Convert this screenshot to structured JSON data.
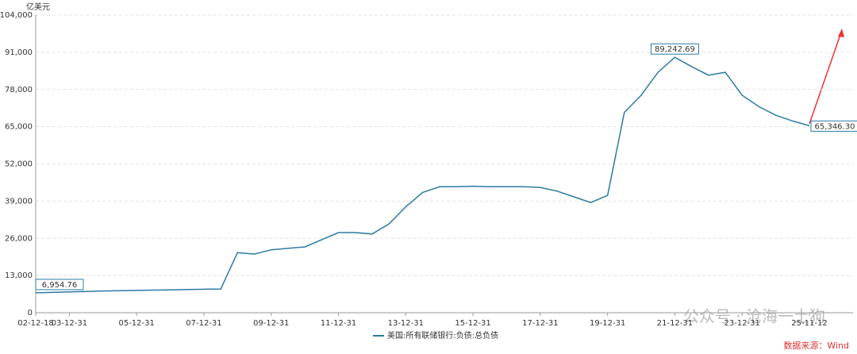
{
  "chart_data": {
    "type": "line",
    "y_unit": "亿美元",
    "categories": [
      "02-12-18",
      null,
      "03-12-31",
      null,
      null,
      null,
      "05-12-31",
      null,
      null,
      null,
      "07-12-31",
      null,
      null,
      null,
      "09-12-31",
      null,
      null,
      null,
      "11-12-31",
      null,
      null,
      null,
      "13-12-31",
      null,
      null,
      null,
      "15-12-31",
      null,
      null,
      null,
      "17-12-31",
      null,
      null,
      null,
      "19-12-31",
      null,
      null,
      null,
      "21-12-31",
      null,
      null,
      null,
      "23-12-31",
      null,
      null,
      null,
      "25-11-12"
    ],
    "series": [
      {
        "name": "美国:所有联储银行:负债:总负债",
        "color": "#2b7ba3",
        "values": [
          6954.76,
          7100,
          7300,
          7400,
          7600,
          7700,
          7800,
          7900,
          8000,
          8100,
          8200,
          8300,
          21000,
          20500,
          22000,
          22500,
          23000,
          25500,
          28000,
          28000,
          27500,
          31000,
          37000,
          42000,
          44000,
          44000,
          44200,
          44000,
          44000,
          44000,
          43800,
          42500,
          40500,
          38500,
          41000,
          70000,
          76000,
          84000,
          89242.69,
          86000,
          83000,
          84000,
          76000,
          72000,
          69000,
          67000,
          65346.3
        ],
        "value_labels": [
          "6,954.76",
          null,
          null,
          null,
          null,
          null,
          null,
          null,
          null,
          null,
          null,
          null,
          null,
          null,
          null,
          null,
          null,
          null,
          null,
          null,
          null,
          null,
          null,
          null,
          null,
          null,
          null,
          null,
          null,
          null,
          null,
          null,
          null,
          null,
          null,
          null,
          null,
          null,
          "89,242.69",
          null,
          null,
          null,
          null,
          null,
          null,
          null,
          "65,346.30"
        ]
      }
    ],
    "ylim": [
      0,
      104000
    ],
    "yticks": [
      0,
      {
        "value": 13000,
        "label": "13,000"
      },
      {
        "value": 26000,
        "label": "26,000"
      },
      {
        "value": 39000,
        "label": "39,000"
      },
      {
        "value": 52000,
        "label": "52,000"
      },
      {
        "value": 65000,
        "label": "65,000"
      },
      {
        "value": 78000,
        "label": "78,000"
      },
      {
        "value": 91000,
        "label": "91,000"
      },
      {
        "value": 104000,
        "label": "104,000"
      }
    ],
    "grid": true,
    "legend": "bottom",
    "watermark": "公众号 · 沧海一土狗",
    "source": "数据来源：Wind"
  }
}
